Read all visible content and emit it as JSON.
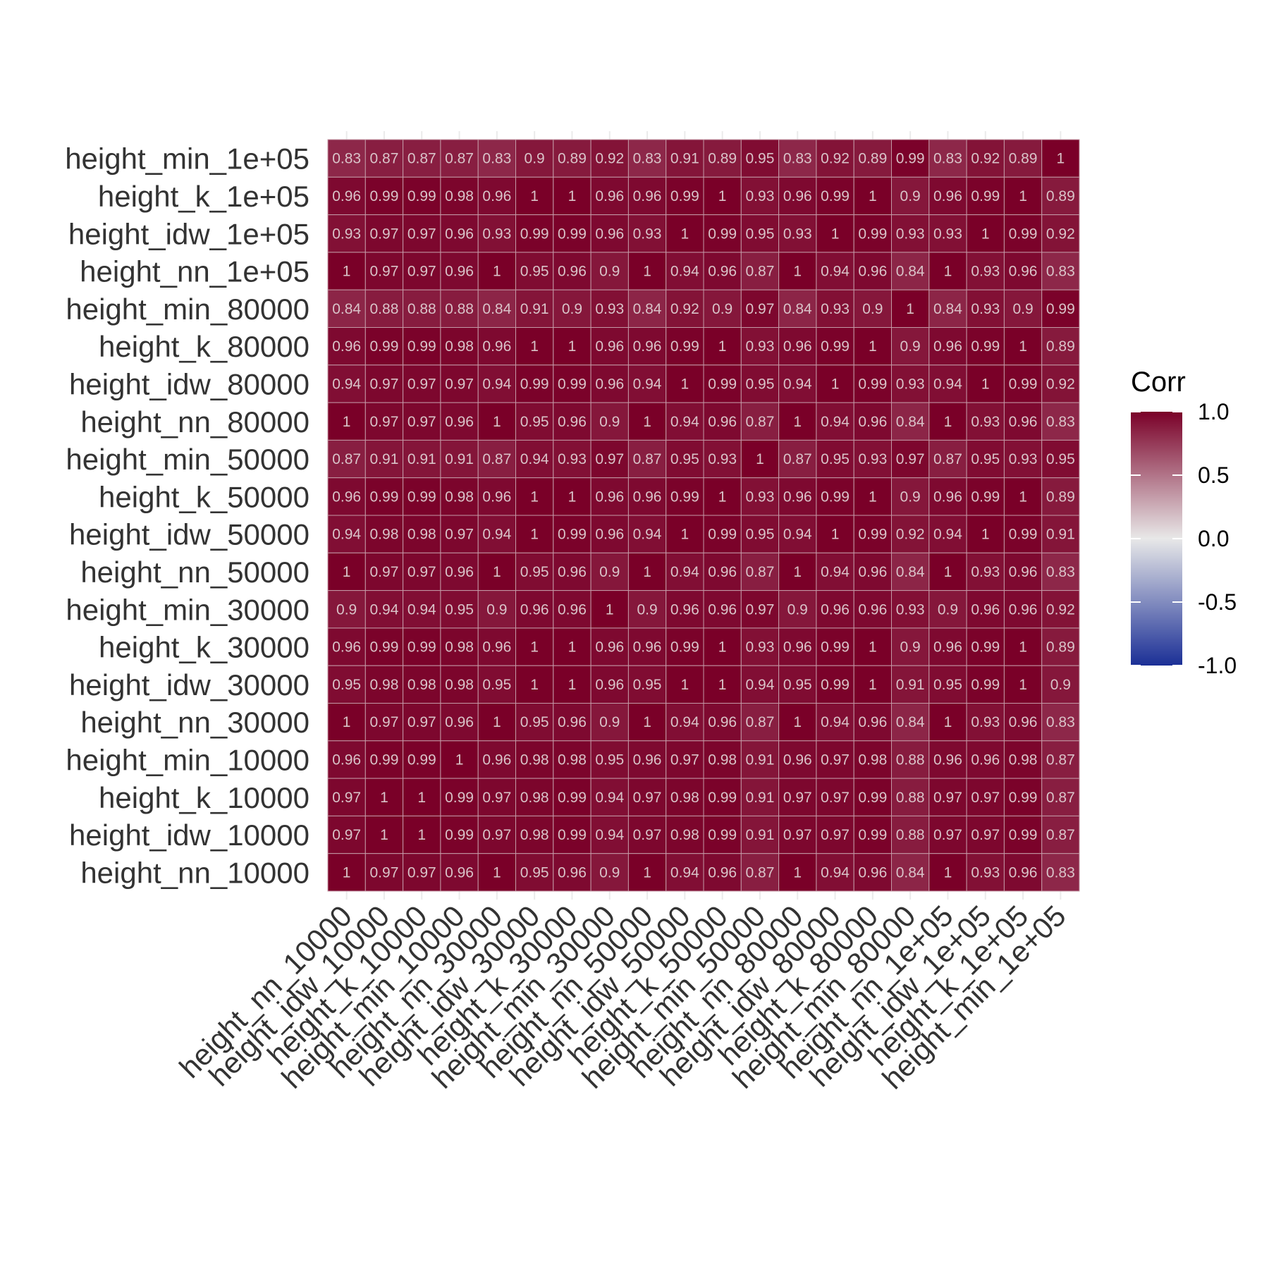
{
  "chart_data": {
    "type": "heatmap",
    "title": "",
    "xlabel": "",
    "ylabel": "",
    "variables": [
      "height_nn_10000",
      "height_idw_10000",
      "height_k_10000",
      "height_min_10000",
      "height_nn_30000",
      "height_idw_30000",
      "height_k_30000",
      "height_min_30000",
      "height_nn_50000",
      "height_idw_50000",
      "height_k_50000",
      "height_min_50000",
      "height_nn_80000",
      "height_idw_80000",
      "height_k_80000",
      "height_min_80000",
      "height_nn_1e+05",
      "height_idw_1e+05",
      "height_k_1e+05",
      "height_min_1e+05"
    ],
    "rows_top_to_bottom": [
      "height_min_1e+05",
      "height_k_1e+05",
      "height_idw_1e+05",
      "height_nn_1e+05",
      "height_min_80000",
      "height_k_80000",
      "height_idw_80000",
      "height_nn_80000",
      "height_min_50000",
      "height_k_50000",
      "height_idw_50000",
      "height_nn_50000",
      "height_min_30000",
      "height_k_30000",
      "height_idw_30000",
      "height_nn_30000",
      "height_min_10000",
      "height_k_10000",
      "height_idw_10000",
      "height_nn_10000"
    ],
    "values": [
      [
        0.83,
        0.87,
        0.87,
        0.87,
        0.83,
        0.9,
        0.89,
        0.92,
        0.83,
        0.91,
        0.89,
        0.95,
        0.83,
        0.92,
        0.89,
        0.99,
        0.83,
        0.92,
        0.89,
        1
      ],
      [
        0.96,
        0.99,
        0.99,
        0.98,
        0.96,
        1,
        1,
        0.96,
        0.96,
        0.99,
        1,
        0.93,
        0.96,
        0.99,
        1,
        0.9,
        0.96,
        0.99,
        1,
        0.89
      ],
      [
        0.93,
        0.97,
        0.97,
        0.96,
        0.93,
        0.99,
        0.99,
        0.96,
        0.93,
        1,
        0.99,
        0.95,
        0.93,
        1,
        0.99,
        0.93,
        0.93,
        1,
        0.99,
        0.92
      ],
      [
        1,
        0.97,
        0.97,
        0.96,
        1,
        0.95,
        0.96,
        0.9,
        1,
        0.94,
        0.96,
        0.87,
        1,
        0.94,
        0.96,
        0.84,
        1,
        0.93,
        0.96,
        0.83
      ],
      [
        0.84,
        0.88,
        0.88,
        0.88,
        0.84,
        0.91,
        0.9,
        0.93,
        0.84,
        0.92,
        0.9,
        0.97,
        0.84,
        0.93,
        0.9,
        1,
        0.84,
        0.93,
        0.9,
        0.99
      ],
      [
        0.96,
        0.99,
        0.99,
        0.98,
        0.96,
        1,
        1,
        0.96,
        0.96,
        0.99,
        1,
        0.93,
        0.96,
        0.99,
        1,
        0.9,
        0.96,
        0.99,
        1,
        0.89
      ],
      [
        0.94,
        0.97,
        0.97,
        0.97,
        0.94,
        0.99,
        0.99,
        0.96,
        0.94,
        1,
        0.99,
        0.95,
        0.94,
        1,
        0.99,
        0.93,
        0.94,
        1,
        0.99,
        0.92
      ],
      [
        1,
        0.97,
        0.97,
        0.96,
        1,
        0.95,
        0.96,
        0.9,
        1,
        0.94,
        0.96,
        0.87,
        1,
        0.94,
        0.96,
        0.84,
        1,
        0.93,
        0.96,
        0.83
      ],
      [
        0.87,
        0.91,
        0.91,
        0.91,
        0.87,
        0.94,
        0.93,
        0.97,
        0.87,
        0.95,
        0.93,
        1,
        0.87,
        0.95,
        0.93,
        0.97,
        0.87,
        0.95,
        0.93,
        0.95
      ],
      [
        0.96,
        0.99,
        0.99,
        0.98,
        0.96,
        1,
        1,
        0.96,
        0.96,
        0.99,
        1,
        0.93,
        0.96,
        0.99,
        1,
        0.9,
        0.96,
        0.99,
        1,
        0.89
      ],
      [
        0.94,
        0.98,
        0.98,
        0.97,
        0.94,
        1,
        0.99,
        0.96,
        0.94,
        1,
        0.99,
        0.95,
        0.94,
        1,
        0.99,
        0.92,
        0.94,
        1,
        0.99,
        0.91
      ],
      [
        1,
        0.97,
        0.97,
        0.96,
        1,
        0.95,
        0.96,
        0.9,
        1,
        0.94,
        0.96,
        0.87,
        1,
        0.94,
        0.96,
        0.84,
        1,
        0.93,
        0.96,
        0.83
      ],
      [
        0.9,
        0.94,
        0.94,
        0.95,
        0.9,
        0.96,
        0.96,
        1,
        0.9,
        0.96,
        0.96,
        0.97,
        0.9,
        0.96,
        0.96,
        0.93,
        0.9,
        0.96,
        0.96,
        0.92
      ],
      [
        0.96,
        0.99,
        0.99,
        0.98,
        0.96,
        1,
        1,
        0.96,
        0.96,
        0.99,
        1,
        0.93,
        0.96,
        0.99,
        1,
        0.9,
        0.96,
        0.99,
        1,
        0.89
      ],
      [
        0.95,
        0.98,
        0.98,
        0.98,
        0.95,
        1,
        1,
        0.96,
        0.95,
        1,
        1,
        0.94,
        0.95,
        0.99,
        1,
        0.91,
        0.95,
        0.99,
        1,
        0.9
      ],
      [
        1,
        0.97,
        0.97,
        0.96,
        1,
        0.95,
        0.96,
        0.9,
        1,
        0.94,
        0.96,
        0.87,
        1,
        0.94,
        0.96,
        0.84,
        1,
        0.93,
        0.96,
        0.83
      ],
      [
        0.96,
        0.99,
        0.99,
        1,
        0.96,
        0.98,
        0.98,
        0.95,
        0.96,
        0.97,
        0.98,
        0.91,
        0.96,
        0.97,
        0.98,
        0.88,
        0.96,
        0.96,
        0.98,
        0.87
      ],
      [
        0.97,
        1,
        1,
        0.99,
        0.97,
        0.98,
        0.99,
        0.94,
        0.97,
        0.98,
        0.99,
        0.91,
        0.97,
        0.97,
        0.99,
        0.88,
        0.97,
        0.97,
        0.99,
        0.87
      ],
      [
        0.97,
        1,
        1,
        0.99,
        0.97,
        0.98,
        0.99,
        0.94,
        0.97,
        0.98,
        0.99,
        0.91,
        0.97,
        0.97,
        0.99,
        0.88,
        0.97,
        0.97,
        0.99,
        0.87
      ],
      [
        1,
        0.97,
        0.97,
        0.96,
        1,
        0.95,
        0.96,
        0.9,
        1,
        0.94,
        0.96,
        0.87,
        1,
        0.94,
        0.96,
        0.84,
        1,
        0.93,
        0.96,
        0.83
      ]
    ],
    "legend": {
      "title": "Corr",
      "placement": "right",
      "ticks": [
        "1.0",
        "0.5",
        "0.0",
        "-0.5",
        "-1.0"
      ],
      "tick_values": [
        1,
        0.5,
        0,
        -0.5,
        -1
      ],
      "range": [
        -1,
        1
      ]
    },
    "colors": {
      "low": "#1b2f96",
      "mid": "#e8e8e8",
      "high": "#7a0028"
    },
    "grid": true
  }
}
